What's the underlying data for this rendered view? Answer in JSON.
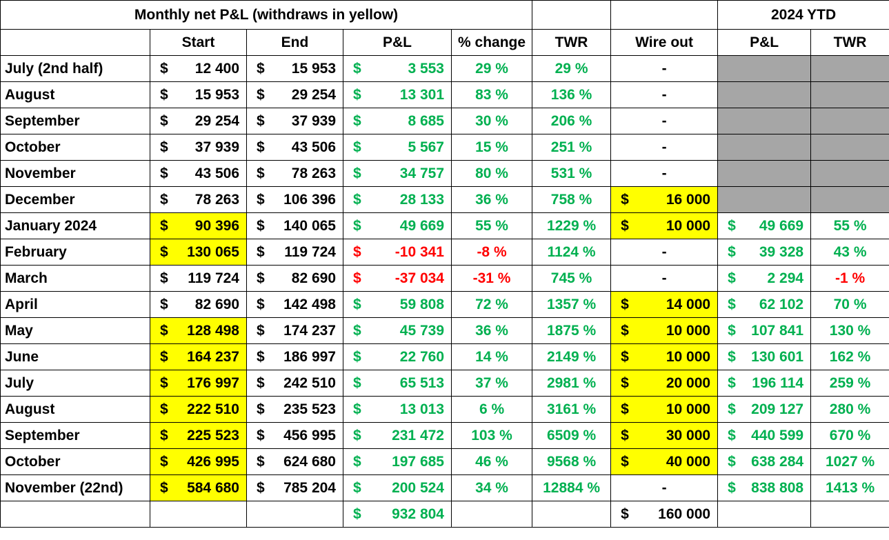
{
  "header": {
    "title": "Monthly net P&L (withdraws in yellow)",
    "ytd_title": "2024 YTD",
    "columns": [
      "Start",
      "End",
      "P&L",
      "% change",
      "TWR",
      "Wire out",
      "P&L",
      "TWR"
    ]
  },
  "currency": "$",
  "colors": {
    "green": "#00b050",
    "red": "#ff0000",
    "yellow": "#ffff00",
    "gray": "#a6a6a6"
  },
  "rows": [
    {
      "month": "July (2nd half)",
      "start": "12 400",
      "start_yellow": false,
      "end": "15 953",
      "pl": "3 553",
      "pl_neg": false,
      "change": "29 %",
      "twr": "29 %",
      "wire": "-",
      "ytd_pl": "",
      "ytd_twr": "",
      "ytd_gray": true,
      "ytd_twr_neg": false
    },
    {
      "month": "August",
      "start": "15 953",
      "start_yellow": false,
      "end": "29 254",
      "pl": "13 301",
      "pl_neg": false,
      "change": "83 %",
      "twr": "136 %",
      "wire": "-",
      "ytd_pl": "",
      "ytd_twr": "",
      "ytd_gray": true,
      "ytd_twr_neg": false
    },
    {
      "month": "September",
      "start": "29 254",
      "start_yellow": false,
      "end": "37 939",
      "pl": "8 685",
      "pl_neg": false,
      "change": "30 %",
      "twr": "206 %",
      "wire": "-",
      "ytd_pl": "",
      "ytd_twr": "",
      "ytd_gray": true,
      "ytd_twr_neg": false
    },
    {
      "month": "October",
      "start": "37 939",
      "start_yellow": false,
      "end": "43 506",
      "pl": "5 567",
      "pl_neg": false,
      "change": "15 %",
      "twr": "251 %",
      "wire": "-",
      "ytd_pl": "",
      "ytd_twr": "",
      "ytd_gray": true,
      "ytd_twr_neg": false
    },
    {
      "month": "November",
      "start": "43 506",
      "start_yellow": false,
      "end": "78 263",
      "pl": "34 757",
      "pl_neg": false,
      "change": "80 %",
      "twr": "531 %",
      "wire": "-",
      "ytd_pl": "",
      "ytd_twr": "",
      "ytd_gray": true,
      "ytd_twr_neg": false
    },
    {
      "month": "December",
      "start": "78 263",
      "start_yellow": false,
      "end": "106 396",
      "pl": "28 133",
      "pl_neg": false,
      "change": "36 %",
      "twr": "758 %",
      "wire": "16 000",
      "ytd_pl": "",
      "ytd_twr": "",
      "ytd_gray": true,
      "ytd_twr_neg": false
    },
    {
      "month": "January 2024",
      "start": "90 396",
      "start_yellow": true,
      "end": "140 065",
      "pl": "49 669",
      "pl_neg": false,
      "change": "55 %",
      "twr": "1229 %",
      "wire": "10 000",
      "ytd_pl": "49 669",
      "ytd_twr": "55 %",
      "ytd_gray": false,
      "ytd_twr_neg": false
    },
    {
      "month": "February",
      "start": "130 065",
      "start_yellow": true,
      "end": "119 724",
      "pl": "-10 341",
      "pl_neg": true,
      "change": "-8 %",
      "twr": "1124 %",
      "wire": "-",
      "ytd_pl": "39 328",
      "ytd_twr": "43 %",
      "ytd_gray": false,
      "ytd_twr_neg": false
    },
    {
      "month": "March",
      "start": "119 724",
      "start_yellow": false,
      "end": "82 690",
      "pl": "-37 034",
      "pl_neg": true,
      "change": "-31 %",
      "twr": "745 %",
      "wire": "-",
      "ytd_pl": "2 294",
      "ytd_twr": "-1 %",
      "ytd_gray": false,
      "ytd_twr_neg": true
    },
    {
      "month": "April",
      "start": "82 690",
      "start_yellow": false,
      "end": "142 498",
      "pl": "59 808",
      "pl_neg": false,
      "change": "72 %",
      "twr": "1357 %",
      "wire": "14 000",
      "ytd_pl": "62 102",
      "ytd_twr": "70 %",
      "ytd_gray": false,
      "ytd_twr_neg": false
    },
    {
      "month": "May",
      "start": "128 498",
      "start_yellow": true,
      "end": "174 237",
      "pl": "45 739",
      "pl_neg": false,
      "change": "36 %",
      "twr": "1875 %",
      "wire": "10 000",
      "ytd_pl": "107 841",
      "ytd_twr": "130 %",
      "ytd_gray": false,
      "ytd_twr_neg": false
    },
    {
      "month": "June",
      "start": "164 237",
      "start_yellow": true,
      "end": "186 997",
      "pl": "22 760",
      "pl_neg": false,
      "change": "14 %",
      "twr": "2149 %",
      "wire": "10 000",
      "ytd_pl": "130 601",
      "ytd_twr": "162 %",
      "ytd_gray": false,
      "ytd_twr_neg": false
    },
    {
      "month": "July",
      "start": "176 997",
      "start_yellow": true,
      "end": "242 510",
      "pl": "65 513",
      "pl_neg": false,
      "change": "37 %",
      "twr": "2981 %",
      "wire": "20 000",
      "ytd_pl": "196 114",
      "ytd_twr": "259 %",
      "ytd_gray": false,
      "ytd_twr_neg": false
    },
    {
      "month": "August",
      "start": "222 510",
      "start_yellow": true,
      "end": "235 523",
      "pl": "13 013",
      "pl_neg": false,
      "change": "6 %",
      "twr": "3161 %",
      "wire": "10 000",
      "ytd_pl": "209 127",
      "ytd_twr": "280 %",
      "ytd_gray": false,
      "ytd_twr_neg": false
    },
    {
      "month": "September",
      "start": "225 523",
      "start_yellow": true,
      "end": "456 995",
      "pl": "231 472",
      "pl_neg": false,
      "change": "103 %",
      "twr": "6509 %",
      "wire": "30 000",
      "ytd_pl": "440 599",
      "ytd_twr": "670 %",
      "ytd_gray": false,
      "ytd_twr_neg": false
    },
    {
      "month": "October",
      "start": "426 995",
      "start_yellow": true,
      "end": "624 680",
      "pl": "197 685",
      "pl_neg": false,
      "change": "46 %",
      "twr": "9568 %",
      "wire": "40 000",
      "ytd_pl": "638 284",
      "ytd_twr": "1027 %",
      "ytd_gray": false,
      "ytd_twr_neg": false
    },
    {
      "month": "November (22nd)",
      "start": "584 680",
      "start_yellow": true,
      "end": "785 204",
      "pl": "200 524",
      "pl_neg": false,
      "change": "34 %",
      "twr": "12884 %",
      "wire": "-",
      "ytd_pl": "838 808",
      "ytd_twr": "1413 %",
      "ytd_gray": false,
      "ytd_twr_neg": false
    }
  ],
  "totals": {
    "pl": "932 804",
    "wire": "160 000"
  }
}
